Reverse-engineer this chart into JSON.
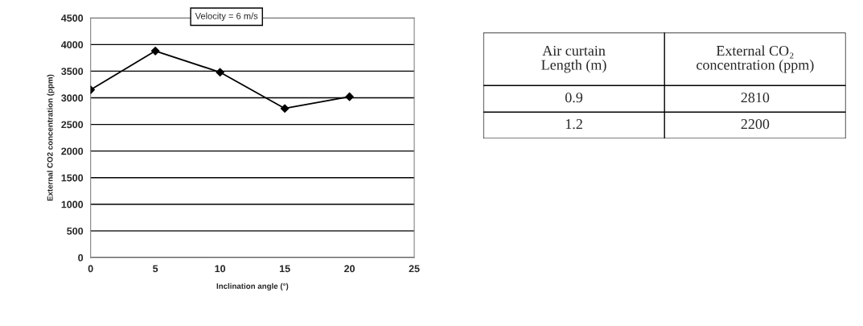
{
  "chart_data": [
    {
      "type": "line",
      "xlabel": "Inclination angle (°)",
      "ylabel": "External CO2 concentration (ppm)",
      "annotations": [
        "Velocity = 6 m/s"
      ],
      "x": [
        0,
        5,
        10,
        15,
        20
      ],
      "series": [
        {
          "color": "#000000",
          "values": [
            3150,
            3880,
            3480,
            2800,
            3020
          ]
        }
      ],
      "xlim": [
        0,
        25
      ],
      "xticks": [
        0,
        5,
        10,
        15,
        20,
        25
      ],
      "ylim": [
        0,
        4500
      ],
      "yticks": [
        0,
        500,
        1000,
        1500,
        2000,
        2500,
        3000,
        3500,
        4000,
        4500
      ],
      "grid": "y",
      "marker": "diamond",
      "line_style": "solid"
    },
    {
      "type": "other",
      "xlabel": "Air curtain Length (m)",
      "ylabel": "External CO₂ concentration (ppm)",
      "categories": [
        "0.9",
        "1.2"
      ],
      "values": [
        2810,
        2200
      ],
      "data_labels": true
    }
  ]
}
